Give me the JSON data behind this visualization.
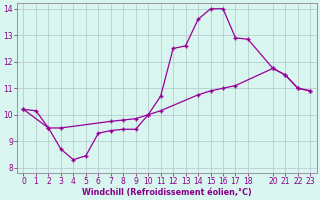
{
  "line1_x": [
    0,
    1,
    2,
    3,
    4,
    5,
    6,
    7,
    8,
    9,
    10,
    11,
    12,
    13,
    14,
    15,
    16,
    17,
    18,
    20,
    21,
    22,
    23
  ],
  "line1_y": [
    10.2,
    10.15,
    9.5,
    8.7,
    8.3,
    8.45,
    9.3,
    9.4,
    9.45,
    9.45,
    10.0,
    10.7,
    12.5,
    12.6,
    13.6,
    14.0,
    14.0,
    12.9,
    12.85,
    11.75,
    11.5,
    11.0,
    10.9
  ],
  "line2_x": [
    0,
    2,
    3,
    7,
    8,
    9,
    10,
    11,
    14,
    15,
    16,
    17,
    20,
    21,
    22,
    23
  ],
  "line2_y": [
    10.2,
    9.5,
    9.5,
    9.75,
    9.8,
    9.85,
    10.0,
    10.15,
    10.75,
    10.9,
    11.0,
    11.1,
    11.75,
    11.5,
    11.0,
    10.9
  ],
  "bg_color": "#d8f5f0",
  "line_color": "#990099",
  "grid_color": "#b0c8c8",
  "xlabel": "Windchill (Refroidissement éolien,°C)",
  "xlim_min": -0.5,
  "xlim_max": 23.5,
  "ylim_min": 7.8,
  "ylim_max": 14.2,
  "xticks": [
    0,
    1,
    2,
    3,
    4,
    5,
    6,
    7,
    8,
    9,
    10,
    11,
    12,
    13,
    14,
    15,
    16,
    17,
    18,
    20,
    21,
    22,
    23
  ],
  "yticks": [
    8,
    9,
    10,
    11,
    12,
    13,
    14
  ],
  "marker": "+",
  "marker_size": 3.5,
  "line_width": 0.9,
  "xlabel_color": "#880088",
  "tick_color": "#880088",
  "label_fontsize": 5.8,
  "tick_fontsize": 5.5,
  "spine_color": "#888888"
}
